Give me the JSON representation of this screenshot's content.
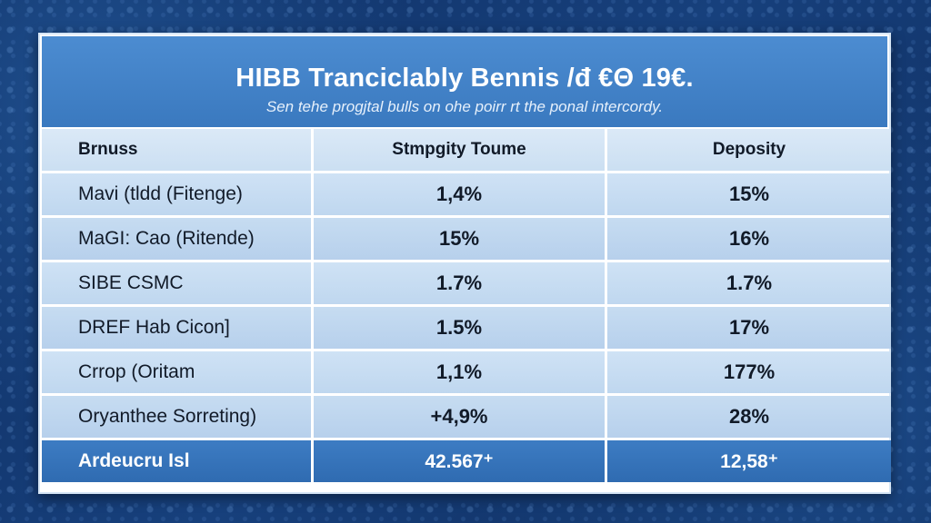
{
  "table": {
    "title": "HIBB Tranciclably Bennis /đ €Θ 19€.",
    "subtitle": "Sen tehe progjtal bulls on ohe poirr rt the ponal intercordy.",
    "columns": [
      "Brnuss",
      "Stmpgity Toume",
      "Deposity"
    ],
    "rows": [
      {
        "name": "Mavi (tldd (Fitenge)",
        "col2": "1,4%",
        "col3": "15%"
      },
      {
        "name": "MaGI: Cao (Ritende)",
        "col2": "15%",
        "col3": "16%"
      },
      {
        "name": "SIBE CSMC",
        "col2": "1.7%",
        "col3": "1.7%"
      },
      {
        "name": "DREF Hab Cicon]",
        "col2": "1.5%",
        "col3": "17%"
      },
      {
        "name": "Crrop (Oritam",
        "col2": "1,1%",
        "col3": "177%"
      },
      {
        "name": "Oryanthee Sorreting)",
        "col2": "+4,9%",
        "col3": "28%"
      }
    ],
    "total": {
      "name": "Ardeucru Isl",
      "col2": "42.567⁺",
      "col3": "12,58⁺"
    }
  },
  "colors": {
    "header_blue": "#3a79bf",
    "cell_light": "#cfe2f5",
    "total_blue": "#2f6bb1",
    "background_navy": "#0f2f63"
  }
}
